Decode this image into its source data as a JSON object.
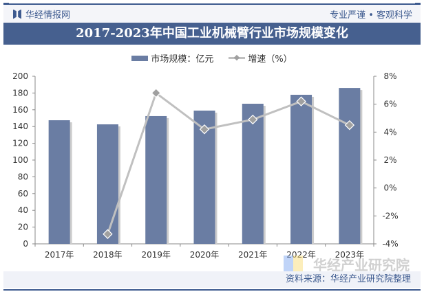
{
  "header": {
    "brand": "华经情报网",
    "slogan": "专业严谨 • 客观科学"
  },
  "title": "2017-2023年中国工业机械臂行业市场规模变化",
  "legend": {
    "bar": "市场规模：亿元",
    "line": "增速（%）"
  },
  "source": "资料来源：华经产业研究院整理",
  "watermark": "华经产业研究院",
  "colors": {
    "bar": "#6a7da3",
    "line": "#c0c0c0",
    "accent": "#46608f"
  },
  "chart_data": {
    "type": "bar+line",
    "title": "2017-2023年中国工业机械臂行业市场规模变化",
    "categories": [
      "2017年",
      "2018年",
      "2019年",
      "2020年",
      "2021年",
      "2022年",
      "2023年"
    ],
    "series": [
      {
        "name": "市场规模：亿元",
        "type": "bar",
        "axis": "left",
        "values": [
          147.5,
          142.6,
          152.5,
          159,
          167.2,
          177.9,
          186
        ]
      },
      {
        "name": "增速（%）",
        "type": "line",
        "axis": "right",
        "values": [
          null,
          -3.3,
          6.8,
          4.2,
          4.9,
          6.2,
          4.5
        ]
      }
    ],
    "y_left": {
      "range": [
        0,
        200
      ],
      "ticks": [
        "0",
        "20",
        "40",
        "60",
        "80",
        "100",
        "120",
        "140",
        "160",
        "180",
        "200"
      ]
    },
    "y_right": {
      "range": [
        -4,
        8
      ],
      "ticks": [
        "-4%",
        "-2%",
        "0%",
        "2%",
        "4%",
        "6%",
        "8%"
      ]
    },
    "grid": false,
    "legend_position": "top"
  }
}
